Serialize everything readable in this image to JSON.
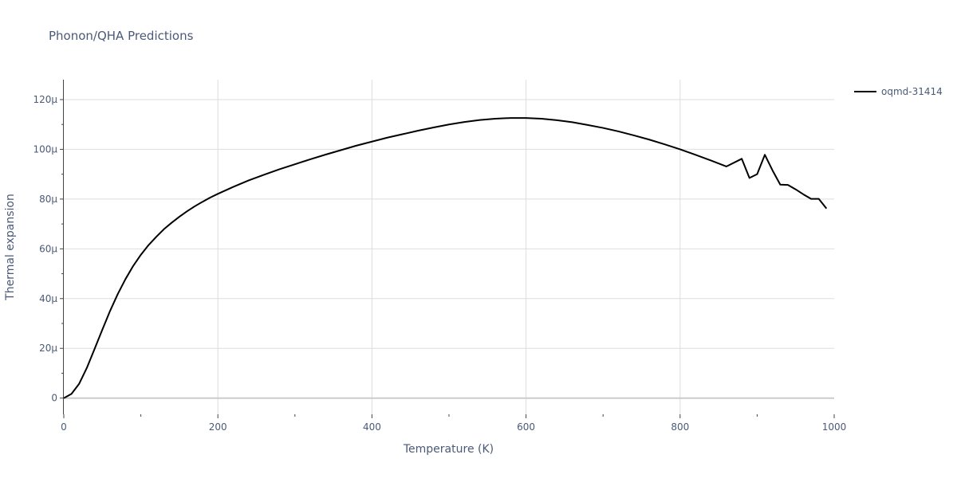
{
  "chart_data": {
    "type": "line",
    "title": "Phonon/QHA Predictions",
    "xlabel": "Temperature (K)",
    "ylabel": "Thermal expansion",
    "xlim": [
      0,
      1000
    ],
    "ylim": [
      -6.5e-06,
      0.000128
    ],
    "grid": true,
    "legend_position": "top-right",
    "x_ticks": [
      {
        "value": 0,
        "label": "0"
      },
      {
        "value": 200,
        "label": "200"
      },
      {
        "value": 400,
        "label": "400"
      },
      {
        "value": 600,
        "label": "600"
      },
      {
        "value": 800,
        "label": "800"
      },
      {
        "value": 1000,
        "label": "1000"
      }
    ],
    "y_ticks": [
      {
        "value": 0,
        "label": "0"
      },
      {
        "value": 2e-05,
        "label": "20μ"
      },
      {
        "value": 4e-05,
        "label": "40μ"
      },
      {
        "value": 6e-05,
        "label": "60μ"
      },
      {
        "value": 8e-05,
        "label": "80μ"
      },
      {
        "value": 0.0001,
        "label": "100μ"
      },
      {
        "value": 0.00012,
        "label": "120μ"
      }
    ],
    "series": [
      {
        "name": "oqmd-31414",
        "color": "#000000",
        "x": [
          0,
          10,
          20,
          30,
          40,
          50,
          60,
          70,
          80,
          90,
          100,
          110,
          120,
          130,
          140,
          150,
          160,
          170,
          180,
          190,
          200,
          220,
          240,
          260,
          280,
          300,
          320,
          340,
          360,
          380,
          400,
          420,
          440,
          460,
          480,
          500,
          520,
          540,
          560,
          580,
          600,
          620,
          640,
          660,
          680,
          700,
          720,
          740,
          760,
          780,
          800,
          820,
          840,
          860,
          880,
          890,
          900,
          910,
          920,
          930,
          940,
          950,
          960,
          970,
          980,
          990
        ],
        "values": [
          0,
          1.7e-06,
          5.8e-06,
          1.22e-05,
          1.98e-05,
          2.75e-05,
          3.5e-05,
          4.18e-05,
          4.78e-05,
          5.31e-05,
          5.76e-05,
          6.15e-05,
          6.48e-05,
          6.79e-05,
          7.05e-05,
          7.29e-05,
          7.51e-05,
          7.71e-05,
          7.89e-05,
          8.06e-05,
          8.21e-05,
          8.49e-05,
          8.75e-05,
          8.98e-05,
          9.2e-05,
          9.4e-05,
          9.6e-05,
          9.79e-05,
          9.97e-05,
          0.0001015,
          0.0001031,
          0.0001047,
          0.0001061,
          0.0001075,
          0.0001088,
          0.00011,
          0.000111,
          0.0001118,
          0.0001123,
          0.0001126,
          0.0001126,
          0.0001123,
          0.0001117,
          0.0001109,
          0.0001098,
          0.0001086,
          0.0001072,
          0.0001056,
          0.0001039,
          0.000102,
          0.0001,
          9.78e-05,
          9.55e-05,
          9.31e-05,
          9.62e-05,
          8.85e-05,
          9e-05,
          9.78e-05,
          9.15e-05,
          8.58e-05,
          8.57e-05,
          8.39e-05,
          8.19e-05,
          8.01e-05,
          8.01e-05,
          7.62e-05
        ]
      }
    ]
  }
}
